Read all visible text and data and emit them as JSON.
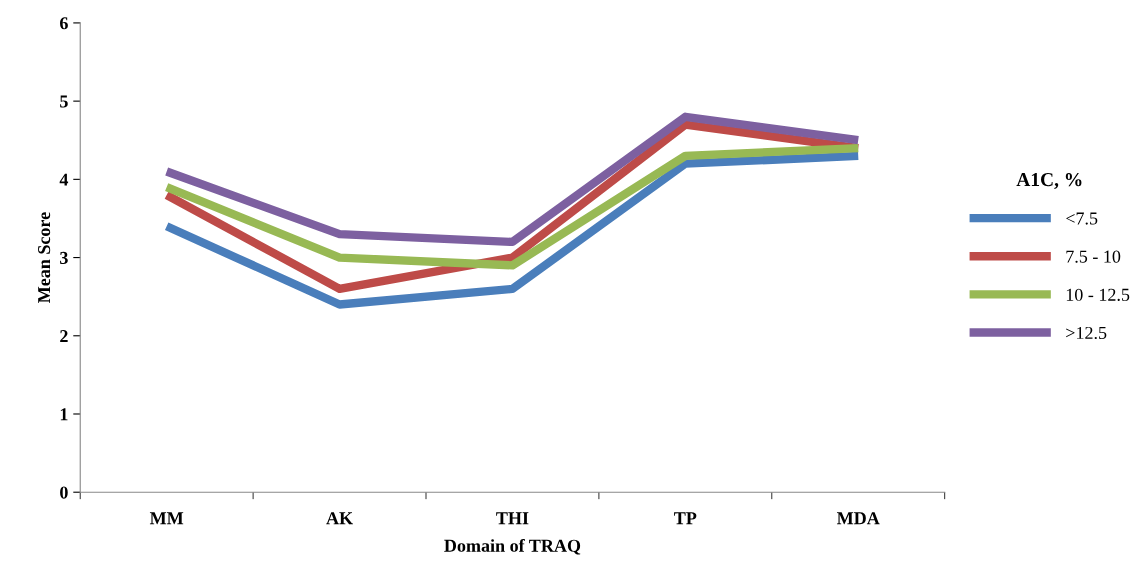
{
  "chart_data": {
    "type": "line",
    "xlabel": "Domain of TRAQ",
    "ylabel": "Mean Score",
    "legend_title": "A1C, %",
    "categories": [
      "MM",
      "AK",
      "THI",
      "TP",
      "MDA"
    ],
    "series": [
      {
        "name": "<7.5",
        "color": "#4a7ebb",
        "values": [
          3.4,
          2.4,
          2.6,
          4.2,
          4.3
        ]
      },
      {
        "name": "7.5 - 10",
        "color": "#be4b48",
        "values": [
          3.8,
          2.6,
          3.0,
          4.7,
          4.4
        ]
      },
      {
        "name": "10 - 12.5",
        "color": "#98b954",
        "values": [
          3.9,
          3.0,
          2.9,
          4.3,
          4.4
        ]
      },
      {
        "name": ">12.5",
        "color": "#7d60a0",
        "values": [
          4.1,
          3.3,
          3.2,
          4.8,
          4.5
        ]
      }
    ],
    "ylim": [
      0,
      6
    ],
    "yticks": [
      0,
      1,
      2,
      3,
      4,
      5,
      6
    ],
    "grid": false,
    "legend": "right",
    "marker": "none",
    "line_style": "solid"
  }
}
